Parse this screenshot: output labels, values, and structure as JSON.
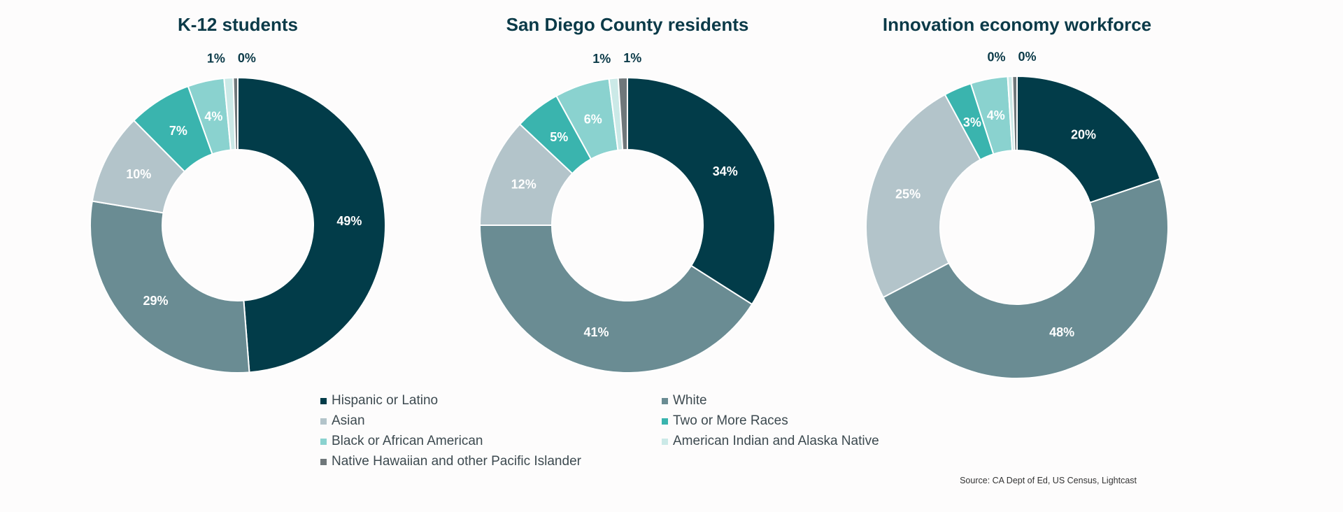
{
  "colors": {
    "Hispanic or Latino": "#023c49",
    "White": "#6a8c93",
    "Asian": "#b3c4ca",
    "Two or More Races": "#3ab4ae",
    "Black or African American": "#8ad2cf",
    "American Indian and Alaska Native": "#cbe9e7",
    "Native Hawaiian and other Pacific Islander": "#6f777a"
  },
  "legend": [
    "Hispanic or Latino",
    "White",
    "Asian",
    "Two or More Races",
    "Black or African American",
    "American Indian and Alaska Native",
    "Native Hawaiian and other Pacific Islander"
  ],
  "source": "Source: CA Dept of Ed, US Census, Lightcast",
  "chart_data": [
    {
      "type": "pie",
      "title": "K-12 students",
      "categories": [
        "Hispanic or Latino",
        "White",
        "Asian",
        "Two or More Races",
        "Black or African American",
        "American Indian and Alaska Native",
        "Native Hawaiian and other Pacific Islander"
      ],
      "values": [
        49,
        29,
        10,
        7,
        4,
        1,
        0
      ],
      "labels": [
        "49%",
        "29%",
        "10%",
        "7%",
        "4%",
        "1%",
        "0%"
      ]
    },
    {
      "type": "pie",
      "title": "San Diego County residents",
      "categories": [
        "Hispanic or Latino",
        "White",
        "Asian",
        "Two or More Races",
        "Black or African American",
        "American Indian and Alaska Native",
        "Native Hawaiian and other Pacific Islander"
      ],
      "values": [
        34,
        41,
        12,
        5,
        6,
        1,
        1
      ],
      "labels": [
        "34%",
        "41%",
        "12%",
        "5%",
        "6%",
        "1%",
        "1%"
      ]
    },
    {
      "type": "pie",
      "title": "Innovation economy workforce",
      "categories": [
        "Hispanic or Latino",
        "White",
        "Asian",
        "Two or More Races",
        "Black or African American",
        "American Indian and Alaska Native",
        "Native Hawaiian and other Pacific Islander"
      ],
      "values": [
        20,
        48,
        25,
        3,
        4,
        0,
        0
      ],
      "labels": [
        "20%",
        "48%",
        "25%",
        "3%",
        "4%",
        "0%",
        "0%"
      ]
    }
  ]
}
